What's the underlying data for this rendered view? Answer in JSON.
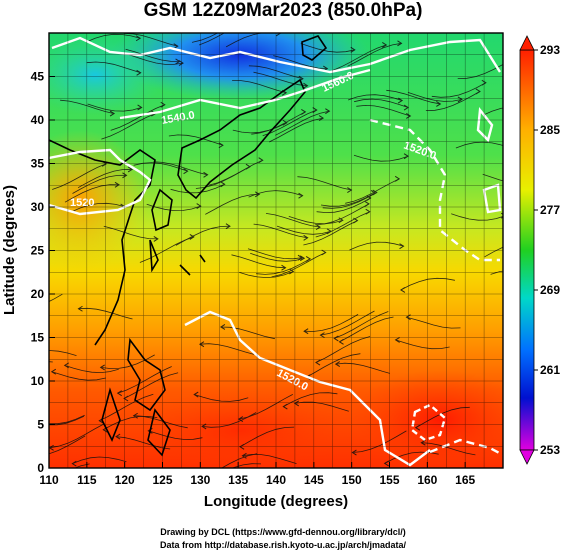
{
  "title": "GSM 12Z09Mar2023 (850.0hPa)",
  "map": {
    "xlabel": "Longitude (degrees)",
    "ylabel": "Latitude  (degrees)",
    "lon_range": [
      110,
      170
    ],
    "lat_range": [
      0,
      50
    ],
    "lon_ticks": [
      110,
      115,
      120,
      125,
      130,
      135,
      140,
      145,
      150,
      155,
      160,
      165
    ],
    "lat_ticks": [
      0,
      5,
      10,
      15,
      20,
      25,
      30,
      35,
      40,
      45
    ],
    "contour_labels": [
      "1560.0",
      "1540.0",
      "1520",
      "1520.0",
      "1520.0"
    ],
    "grid": true,
    "colors": {
      "cold": "#0000ff",
      "cool": "#00e0e0",
      "mild": "#22cc22",
      "warm": "#ffd700",
      "hot": "#ff2a00"
    }
  },
  "colorbar": {
    "tick_labels": [
      "293",
      "285",
      "277",
      "269",
      "261",
      "253"
    ],
    "range": [
      253,
      293
    ]
  },
  "credits": [
    "Drawing by DCL (https://www.gfd-dennou.org/library/dcl/)",
    "Data from http://database.rish.kyoto-u.ac.jp/arch/jmadata/"
  ]
}
